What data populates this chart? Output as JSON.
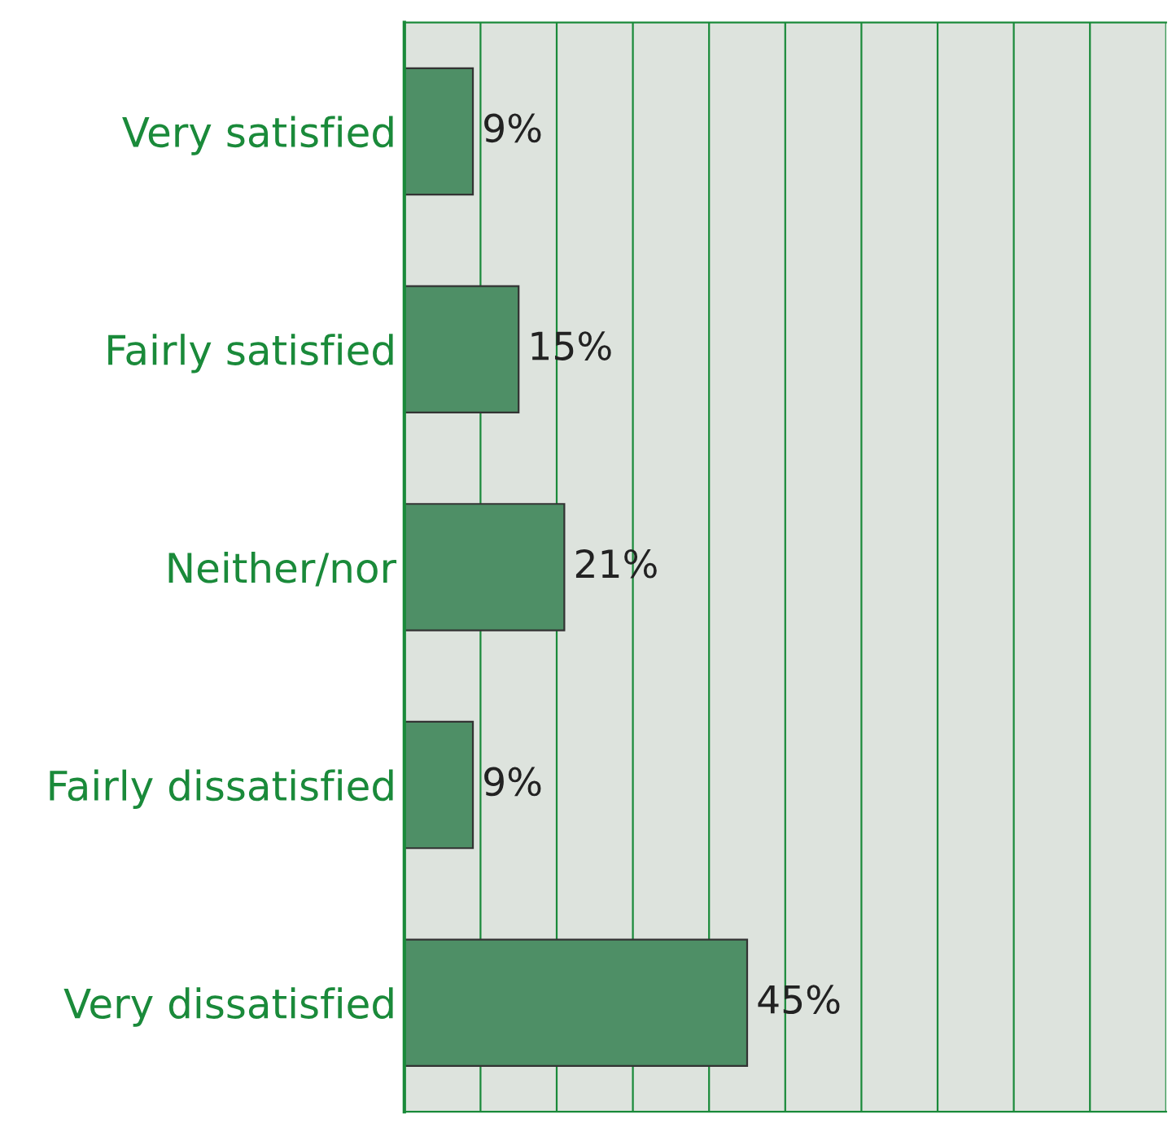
{
  "chart_data": {
    "type": "bar",
    "orientation": "horizontal",
    "categories": [
      "Very satisfied",
      "Fairly satisfied",
      "Neither/nor",
      "Fairly dissatisfied",
      "Very dissatisfied"
    ],
    "values": [
      9,
      15,
      21,
      9,
      45
    ],
    "value_labels": [
      "9%",
      "15%",
      "21%",
      "9%",
      "45%"
    ],
    "color": "#4e8f66",
    "xlim": [
      0,
      100
    ],
    "xticks": [
      {
        "value": 0,
        "label": null
      },
      {
        "value": 10,
        "label": null
      },
      {
        "value": 20,
        "label": null
      },
      {
        "value": 30,
        "label": null
      },
      {
        "value": 40,
        "label": null
      },
      {
        "value": 50,
        "label": null
      },
      {
        "value": 60,
        "label": null
      },
      {
        "value": 70,
        "label": null
      },
      {
        "value": 80,
        "label": null
      },
      {
        "value": 90,
        "label": null
      },
      {
        "value": 100,
        "label": null
      }
    ],
    "grid": "x",
    "legend": false
  }
}
